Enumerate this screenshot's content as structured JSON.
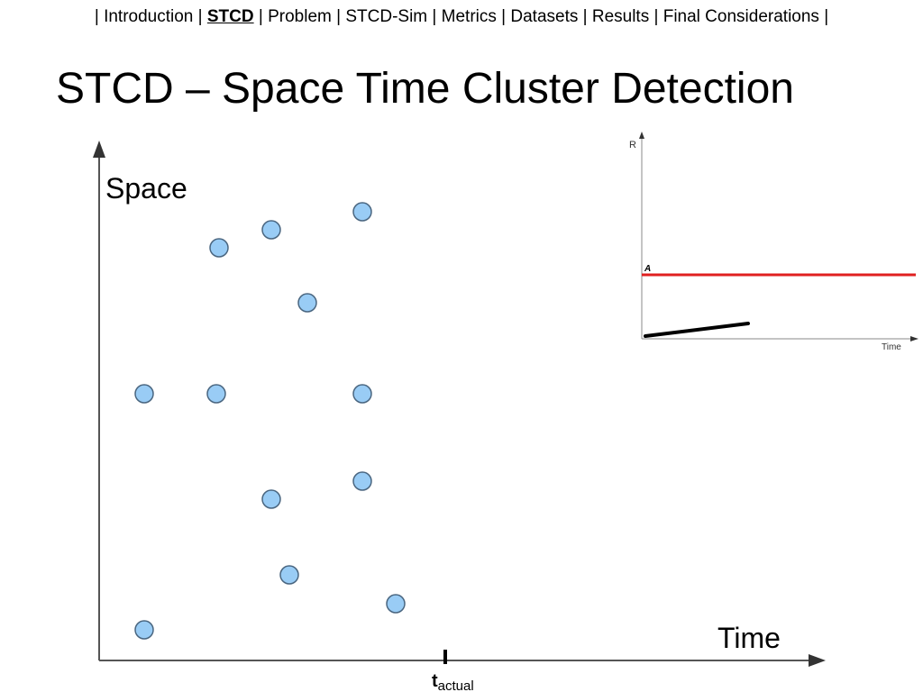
{
  "nav": {
    "separator": "|",
    "items": [
      "Introduction",
      "STCD",
      "Problem",
      "STCD-Sim",
      "Metrics",
      "Datasets",
      "Results",
      "Final Considerations"
    ],
    "active_index": 1
  },
  "title": "STCD – Space Time Cluster Detection",
  "diagram": {
    "y_label": "Space",
    "x_label": "Time",
    "marker_label": "t",
    "marker_subscript": "actual"
  },
  "inset": {
    "y_label": "R",
    "line_label": "A",
    "x_label": "Time"
  }
}
